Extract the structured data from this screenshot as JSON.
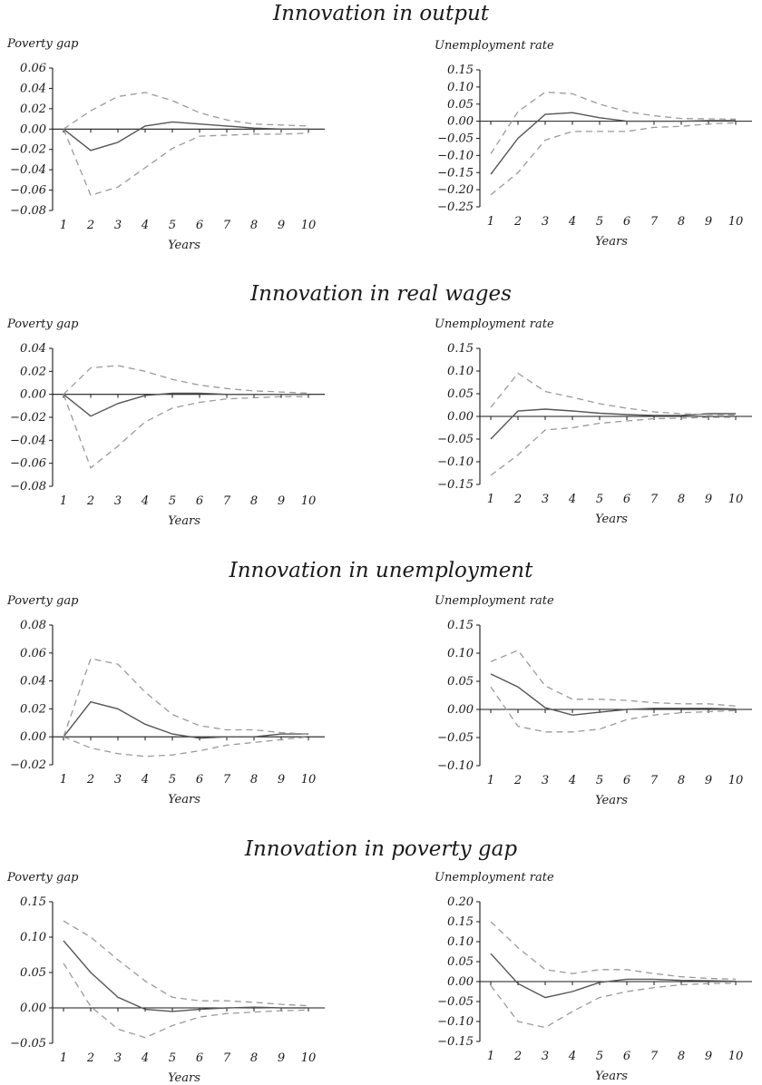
{
  "chart_data": [
    {
      "type": "line",
      "section_title": "Innovation in output",
      "ylabel": "Poverty gap",
      "xlabel": "Years",
      "x": [
        1,
        2,
        3,
        4,
        5,
        6,
        7,
        8,
        9,
        10
      ],
      "ylim": [
        -0.08,
        0.06
      ],
      "yticks": [
        "0.06",
        "0.04",
        "0.02",
        "0.00",
        "−0.02",
        "−0.04",
        "−0.06",
        "−0.08"
      ],
      "series": [
        {
          "style": "solid",
          "values": [
            0,
            -0.021,
            -0.013,
            0.003,
            0.007,
            0.005,
            0.003,
            0.001,
            0.0,
            0.0
          ]
        },
        {
          "style": "dashed",
          "values": [
            0,
            0.018,
            0.032,
            0.036,
            0.028,
            0.016,
            0.009,
            0.005,
            0.004,
            0.003
          ]
        },
        {
          "style": "dashed",
          "values": [
            0,
            -0.065,
            -0.057,
            -0.038,
            -0.019,
            -0.007,
            -0.006,
            -0.005,
            -0.005,
            -0.004
          ]
        }
      ]
    },
    {
      "type": "line",
      "ylabel": "Unemployment rate",
      "xlabel": "Years",
      "x": [
        1,
        2,
        3,
        4,
        5,
        6,
        7,
        8,
        9,
        10
      ],
      "ylim": [
        -0.25,
        0.15
      ],
      "yticks": [
        "0.15",
        "0.10",
        "0.05",
        "0.00",
        "−0.05",
        "−0.10",
        "−0.15",
        "−0.20",
        "−0.25"
      ],
      "series": [
        {
          "style": "solid",
          "values": [
            -0.155,
            -0.05,
            0.02,
            0.025,
            0.01,
            0.0,
            0.0,
            0.0,
            0.002,
            0.002
          ]
        },
        {
          "style": "dashed",
          "values": [
            -0.095,
            0.028,
            0.085,
            0.08,
            0.05,
            0.028,
            0.016,
            0.008,
            0.007,
            0.006
          ]
        },
        {
          "style": "dashed",
          "values": [
            -0.215,
            -0.15,
            -0.055,
            -0.03,
            -0.03,
            -0.03,
            -0.018,
            -0.015,
            -0.008,
            -0.005
          ]
        }
      ]
    },
    {
      "type": "line",
      "section_title": "Innovation in real wages",
      "ylabel": "Poverty gap",
      "xlabel": "Years",
      "x": [
        1,
        2,
        3,
        4,
        5,
        6,
        7,
        8,
        9,
        10
      ],
      "ylim": [
        -0.08,
        0.04
      ],
      "yticks": [
        "0.04",
        "0.02",
        "0.00",
        "−0.02",
        "−0.04",
        "−0.06",
        "−0.08"
      ],
      "series": [
        {
          "style": "solid",
          "values": [
            0,
            -0.019,
            -0.008,
            -0.001,
            0.001,
            0.001,
            0.0,
            0.0,
            0.0,
            0.0
          ]
        },
        {
          "style": "dashed",
          "values": [
            0,
            0.023,
            0.025,
            0.02,
            0.013,
            0.008,
            0.005,
            0.003,
            0.002,
            0.001
          ]
        },
        {
          "style": "dashed",
          "values": [
            0,
            -0.064,
            -0.045,
            -0.024,
            -0.012,
            -0.007,
            -0.004,
            -0.003,
            -0.002,
            -0.002
          ]
        }
      ]
    },
    {
      "type": "line",
      "ylabel": "Unemployment rate",
      "xlabel": "Years",
      "x": [
        1,
        2,
        3,
        4,
        5,
        6,
        7,
        8,
        9,
        10
      ],
      "ylim": [
        -0.15,
        0.15
      ],
      "yticks": [
        "0.15",
        "0.10",
        "0.05",
        "0.00",
        "−0.05",
        "−0.10",
        "−0.15"
      ],
      "series": [
        {
          "style": "solid",
          "values": [
            -0.05,
            0.012,
            0.016,
            0.012,
            0.007,
            0.004,
            0.002,
            0.002,
            0.006,
            0.006
          ]
        },
        {
          "style": "dashed",
          "values": [
            0.02,
            0.095,
            0.055,
            0.042,
            0.028,
            0.018,
            0.01,
            0.006,
            0.004,
            0.003
          ]
        },
        {
          "style": "dashed",
          "values": [
            -0.13,
            -0.085,
            -0.03,
            -0.025,
            -0.015,
            -0.01,
            -0.005,
            -0.004,
            -0.002,
            -0.002
          ]
        }
      ]
    },
    {
      "type": "line",
      "section_title": "Innovation in unemployment",
      "ylabel": "Poverty gap",
      "xlabel": "Years",
      "x": [
        1,
        2,
        3,
        4,
        5,
        6,
        7,
        8,
        9,
        10
      ],
      "ylim": [
        -0.02,
        0.08
      ],
      "yticks": [
        "0.08",
        "0.06",
        "0.04",
        "0.02",
        "0.00",
        "−0.02"
      ],
      "series": [
        {
          "style": "solid",
          "values": [
            0,
            0.025,
            0.02,
            0.009,
            0.002,
            -0.001,
            0.0,
            0.0,
            0.002,
            0.002
          ]
        },
        {
          "style": "dashed",
          "values": [
            0,
            0.056,
            0.052,
            0.032,
            0.016,
            0.008,
            0.005,
            0.005,
            0.003,
            0.002
          ]
        },
        {
          "style": "dashed",
          "values": [
            0,
            -0.008,
            -0.012,
            -0.014,
            -0.013,
            -0.01,
            -0.006,
            -0.004,
            -0.002,
            0.0
          ]
        }
      ]
    },
    {
      "type": "line",
      "ylabel": "Unemployment rate",
      "xlabel": "Years",
      "x": [
        1,
        2,
        3,
        4,
        5,
        6,
        7,
        8,
        9,
        10
      ],
      "ylim": [
        -0.1,
        0.15
      ],
      "yticks": [
        "0.15",
        "0.10",
        "0.05",
        "0.00",
        "−0.05",
        "−0.10"
      ],
      "series": [
        {
          "style": "solid",
          "values": [
            0.063,
            0.04,
            0.003,
            -0.01,
            -0.005,
            0.0,
            0.002,
            0.002,
            0.002,
            0.001
          ]
        },
        {
          "style": "dashed",
          "values": [
            0.085,
            0.105,
            0.042,
            0.018,
            0.018,
            0.016,
            0.012,
            0.01,
            0.01,
            0.006
          ]
        },
        {
          "style": "dashed",
          "values": [
            0.04,
            -0.03,
            -0.04,
            -0.04,
            -0.035,
            -0.018,
            -0.01,
            -0.006,
            -0.004,
            -0.002
          ]
        }
      ]
    },
    {
      "type": "line",
      "section_title": "Innovation in poverty gap",
      "ylabel": "Poverty gap",
      "xlabel": "Years",
      "x": [
        1,
        2,
        3,
        4,
        5,
        6,
        7,
        8,
        9,
        10
      ],
      "ylim": [
        -0.05,
        0.15
      ],
      "yticks": [
        "0.15",
        "0.10",
        "0.05",
        "0.00",
        "−0.05"
      ],
      "series": [
        {
          "style": "solid",
          "values": [
            0.095,
            0.05,
            0.015,
            -0.002,
            -0.005,
            -0.002,
            0.0,
            0.001,
            0.0,
            0.0
          ]
        },
        {
          "style": "dashed",
          "values": [
            0.123,
            0.1,
            0.068,
            0.038,
            0.015,
            0.01,
            0.01,
            0.008,
            0.005,
            0.003
          ]
        },
        {
          "style": "dashed",
          "values": [
            0.063,
            0.002,
            -0.03,
            -0.042,
            -0.025,
            -0.013,
            -0.008,
            -0.006,
            -0.004,
            -0.003
          ]
        }
      ]
    },
    {
      "type": "line",
      "ylabel": "Unemployment rate",
      "xlabel": "Years",
      "x": [
        1,
        2,
        3,
        4,
        5,
        6,
        7,
        8,
        9,
        10
      ],
      "ylim": [
        -0.15,
        0.2
      ],
      "yticks": [
        "0.20",
        "0.15",
        "0.10",
        "0.05",
        "0.00",
        "−0.05",
        "−0.10",
        "−0.15"
      ],
      "series": [
        {
          "style": "solid",
          "values": [
            0.07,
            -0.005,
            -0.04,
            -0.025,
            -0.002,
            0.006,
            0.006,
            0.003,
            0.002,
            0.001
          ]
        },
        {
          "style": "dashed",
          "values": [
            0.15,
            0.085,
            0.03,
            0.02,
            0.03,
            0.03,
            0.02,
            0.012,
            0.008,
            0.006
          ]
        },
        {
          "style": "dashed",
          "values": [
            -0.01,
            -0.1,
            -0.115,
            -0.075,
            -0.04,
            -0.025,
            -0.015,
            -0.008,
            -0.005,
            -0.004
          ]
        }
      ]
    }
  ],
  "style": {
    "solid_color": "#555555",
    "dashed_color": "#9a9a9a",
    "axis_color": "#1a1a1a"
  }
}
